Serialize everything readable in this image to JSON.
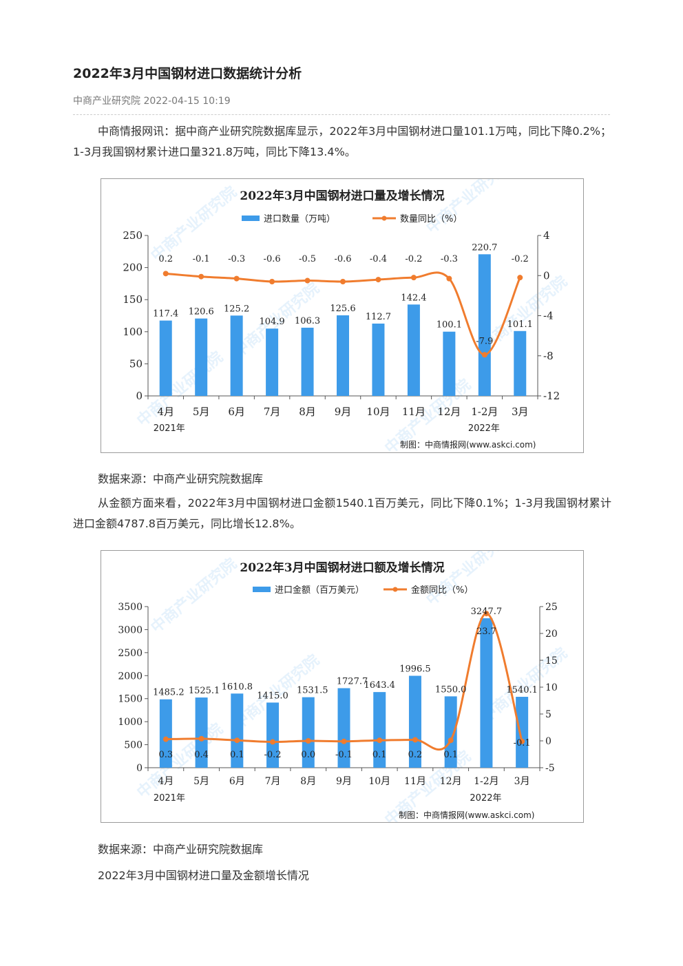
{
  "article": {
    "title": "2022年3月中国钢材进口数据统计分析",
    "meta": "中商产业研究院 2022-04-15 10:19",
    "para1": "中商情报网讯：据中商产业研究院数据库显示，2022年3月中国钢材进口量101.1万吨，同比下降0.2%；1-3月我国钢材累计进口量321.8万吨，同比下降13.4%。",
    "source1": "数据来源：中商产业研究院数据库",
    "para2": "从金额方面来看，2022年3月中国钢材进口金额1540.1百万美元，同比下降0.1%；1-3月我国钢材累计进口金额4787.8百万美元，同比增长12.8%。",
    "source2": "数据来源：中商产业研究院数据库",
    "caption": "2022年3月中国钢材进口量及金额增长情况"
  },
  "colors": {
    "bar": "#3d9be9",
    "line": "#f07c2e",
    "axis": "#555555"
  },
  "chart_data": [
    {
      "type": "bar",
      "title": "2022年3月中国钢材进口量及增长情况",
      "categories": [
        "4月",
        "5月",
        "6月",
        "7月",
        "8月",
        "9月",
        "10月",
        "11月",
        "12月",
        "1-2月",
        "3月"
      ],
      "year_labels": [
        "2021年",
        "2022年"
      ],
      "series": [
        {
          "name": "进口数量（万吨）",
          "type": "bar",
          "axis": "left",
          "values": [
            117.4,
            120.6,
            125.2,
            104.9,
            106.3,
            125.6,
            112.7,
            142.4,
            100.1,
            220.7,
            101.1
          ]
        },
        {
          "name": "数量同比（%）",
          "type": "line",
          "axis": "right",
          "values": [
            0.2,
            -0.1,
            -0.3,
            -0.6,
            -0.5,
            -0.6,
            -0.4,
            -0.2,
            -0.3,
            -7.9,
            -0.2
          ]
        }
      ],
      "left_axis": {
        "min": 0,
        "max": 250,
        "ticks": [
          0,
          50,
          100,
          150,
          200,
          250
        ]
      },
      "right_axis": {
        "min": -12,
        "max": 4,
        "ticks": [
          -12,
          -8,
          -4,
          0,
          4
        ]
      },
      "credit": "制图：中商情报网(www.askci.com)",
      "watermark": "中商产业研究院",
      "legend": "top-center"
    },
    {
      "type": "bar",
      "title": "2022年3月中国钢材进口额及增长情况",
      "categories": [
        "4月",
        "5月",
        "6月",
        "7月",
        "8月",
        "9月",
        "10月",
        "11月",
        "12月",
        "1-2月",
        "3月"
      ],
      "year_labels": [
        "2021年",
        "2022年"
      ],
      "series": [
        {
          "name": "进口金额（百万美元）",
          "type": "bar",
          "axis": "left",
          "values": [
            1485.2,
            1525.1,
            1610.8,
            1415.0,
            1531.5,
            1727.7,
            1643.4,
            1996.5,
            1550.0,
            3247.7,
            1540.1
          ]
        },
        {
          "name": "金额同比（%）",
          "type": "line",
          "axis": "right",
          "values": [
            0.3,
            0.4,
            0.1,
            -0.2,
            0.0,
            -0.1,
            0.1,
            0.2,
            0.1,
            23.7,
            -0.1
          ]
        }
      ],
      "left_axis": {
        "min": 0,
        "max": 3500,
        "ticks": [
          0,
          500,
          1000,
          1500,
          2000,
          2500,
          3000,
          3500
        ]
      },
      "right_axis": {
        "min": -5,
        "max": 25,
        "ticks": [
          -5,
          0,
          5,
          10,
          15,
          20,
          25
        ]
      },
      "credit": "制图：中商情报网(www.askci.com)",
      "watermark": "中商产业研究院",
      "legend": "top-center"
    }
  ]
}
